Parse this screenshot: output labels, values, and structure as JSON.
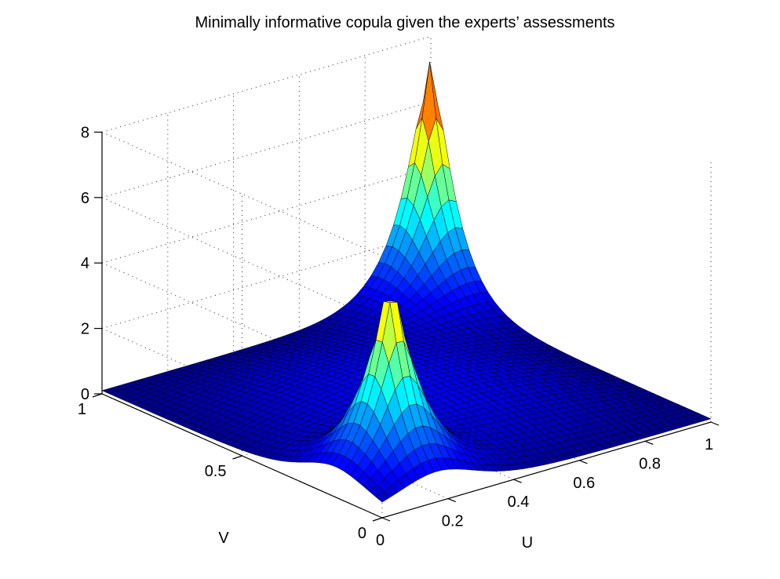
{
  "chart_data": {
    "type": "surface",
    "title": "Minimally informative copula given the experts’ assessments",
    "xlabel": "U",
    "ylabel": "V",
    "zlabel": "",
    "xlim": [
      0,
      1
    ],
    "ylim": [
      0,
      1
    ],
    "zlim": [
      0,
      8
    ],
    "x_ticks": [
      0,
      0.2,
      0.4,
      0.6,
      0.8,
      1
    ],
    "x_tick_labels": [
      "0",
      "0.2",
      "0.4",
      "0.6",
      "0.8",
      "1"
    ],
    "y_ticks": [
      0,
      0.5,
      1
    ],
    "y_tick_labels": [
      "0",
      "0.5",
      "1"
    ],
    "z_ticks": [
      0,
      2,
      4,
      6,
      8
    ],
    "z_tick_labels": [
      "0",
      "2",
      "4",
      "6",
      "8"
    ],
    "grid": true,
    "colormap": "jet",
    "color_limits": [
      0,
      8
    ],
    "mesh_resolution": 44,
    "colormap_stops": [
      "#00008f",
      "#0000ff",
      "#00ffff",
      "#ffff00",
      "#ff0000",
      "#800000"
    ],
    "surface_profile": {
      "description_points_uv_z": [
        [
          [
            0.97,
            0.97
          ],
          7.6
        ],
        [
          [
            0.17,
            0.17
          ],
          6.8
        ],
        [
          [
            0.0,
            1.0
          ],
          0.1
        ],
        [
          [
            1.0,
            0.0
          ],
          0.1
        ],
        [
          [
            0.5,
            0.5
          ],
          1.0
        ],
        [
          [
            0.0,
            0.0
          ],
          0.15
        ]
      ]
    }
  }
}
